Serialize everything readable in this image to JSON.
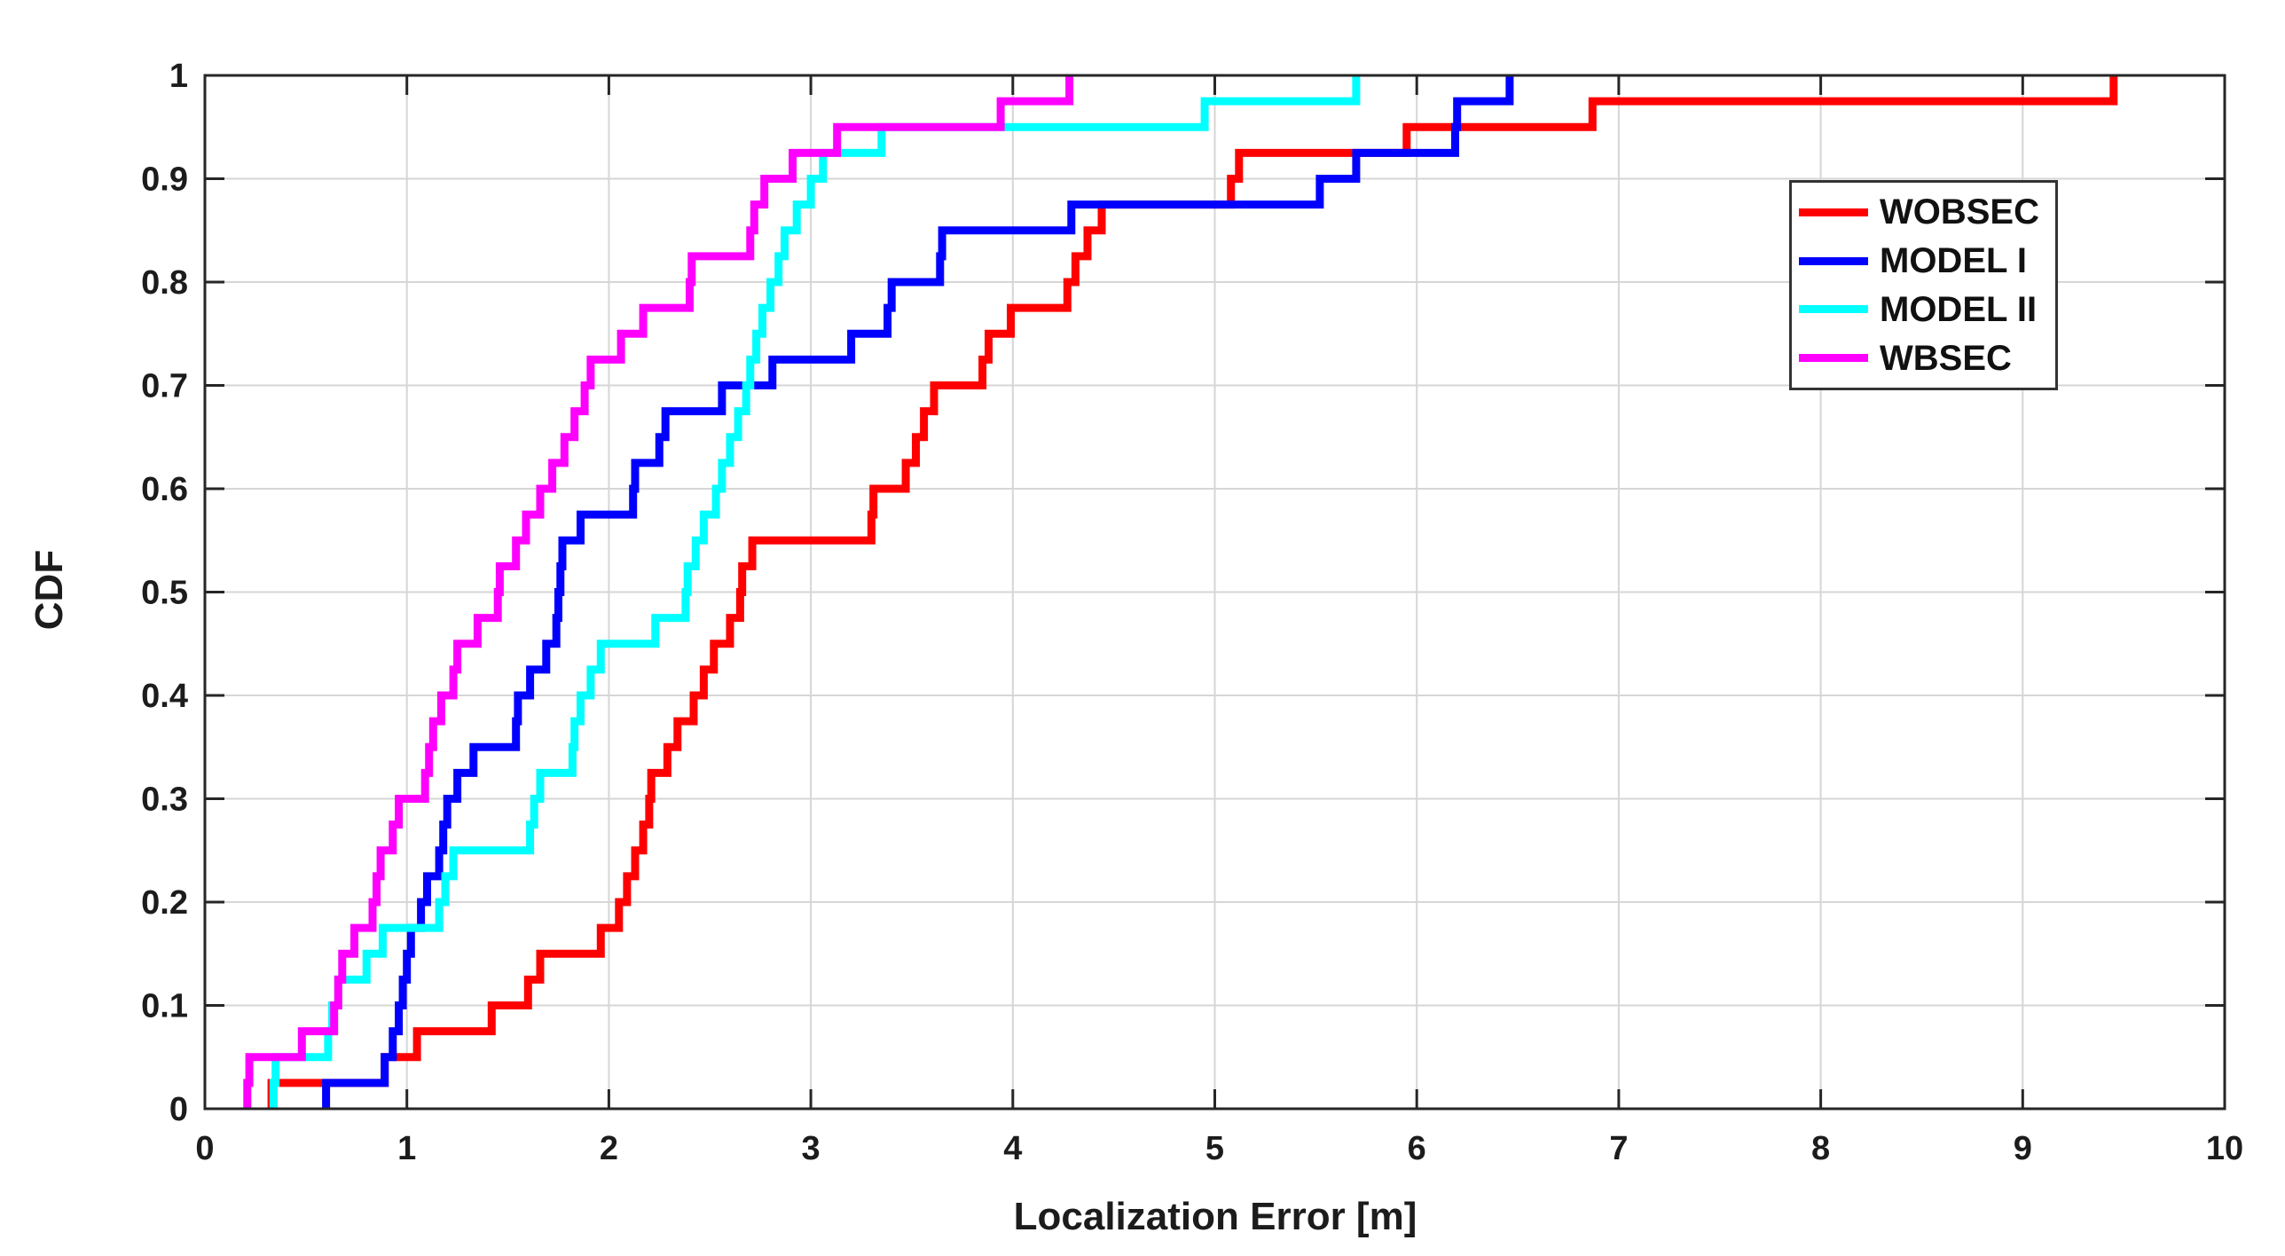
{
  "chart_data": {
    "type": "line",
    "subtype": "empirical-cdf-step",
    "title": "",
    "xlabel": "Localization Error [m]",
    "ylabel": "CDF",
    "xlim": [
      0,
      10
    ],
    "ylim": [
      0,
      1
    ],
    "xticks": [
      0,
      1,
      2,
      3,
      4,
      5,
      6,
      7,
      8,
      9,
      10
    ],
    "xtick_labels": [
      "0",
      "1",
      "2",
      "3",
      "4",
      "5",
      "6",
      "7",
      "8",
      "9",
      "10"
    ],
    "yticks": [
      0,
      0.1,
      0.2,
      0.3,
      0.4,
      0.5,
      0.6,
      0.7,
      0.8,
      0.9,
      1
    ],
    "ytick_labels": [
      "0",
      "0.1",
      "0.2",
      "0.3",
      "0.4",
      "0.5",
      "0.6",
      "0.7",
      "0.8",
      "0.9",
      "1"
    ],
    "grid": true,
    "legend_position": "top-right",
    "step_increment": 0.025,
    "series": [
      {
        "name": "WOBSEC",
        "color": "#ff0000",
        "samples": [
          0.33,
          0.89,
          1.05,
          1.42,
          1.6,
          1.66,
          1.96,
          2.05,
          2.09,
          2.13,
          2.17,
          2.2,
          2.21,
          2.29,
          2.34,
          2.42,
          2.47,
          2.52,
          2.6,
          2.65,
          2.66,
          2.71,
          3.3,
          3.31,
          3.47,
          3.52,
          3.56,
          3.61,
          3.85,
          3.88,
          3.99,
          4.27,
          4.31,
          4.37,
          4.44,
          5.08,
          5.12,
          5.95,
          6.87,
          9.45
        ]
      },
      {
        "name": "MODEL I",
        "color": "#0000ff",
        "samples": [
          0.6,
          0.89,
          0.93,
          0.96,
          0.98,
          1.0,
          1.02,
          1.07,
          1.1,
          1.16,
          1.18,
          1.2,
          1.25,
          1.33,
          1.54,
          1.55,
          1.61,
          1.69,
          1.74,
          1.75,
          1.76,
          1.77,
          1.86,
          2.12,
          2.13,
          2.25,
          2.28,
          2.56,
          2.81,
          3.2,
          3.38,
          3.4,
          3.64,
          3.65,
          4.29,
          5.52,
          5.7,
          6.19,
          6.2,
          6.46
        ]
      },
      {
        "name": "MODEL II",
        "color": "#00ffff",
        "samples": [
          0.34,
          0.35,
          0.61,
          0.63,
          0.66,
          0.8,
          0.88,
          1.16,
          1.19,
          1.23,
          1.61,
          1.63,
          1.66,
          1.82,
          1.83,
          1.86,
          1.91,
          1.96,
          2.23,
          2.38,
          2.39,
          2.43,
          2.47,
          2.53,
          2.56,
          2.6,
          2.64,
          2.68,
          2.7,
          2.73,
          2.76,
          2.8,
          2.84,
          2.87,
          2.93,
          3.0,
          3.06,
          3.35,
          4.95,
          5.7
        ]
      },
      {
        "name": "WBSEC",
        "color": "#ff00ff",
        "samples": [
          0.21,
          0.22,
          0.48,
          0.64,
          0.66,
          0.68,
          0.74,
          0.83,
          0.85,
          0.87,
          0.93,
          0.96,
          1.09,
          1.11,
          1.13,
          1.17,
          1.23,
          1.25,
          1.35,
          1.45,
          1.46,
          1.54,
          1.59,
          1.66,
          1.72,
          1.78,
          1.83,
          1.88,
          1.91,
          2.06,
          2.17,
          2.4,
          2.41,
          2.7,
          2.72,
          2.77,
          2.91,
          3.13,
          3.94,
          4.28
        ]
      }
    ]
  },
  "colors": {
    "background": "#ffffff",
    "grid": "#d6d6d6",
    "axis": "#262626",
    "tick_label": "#1c1c1c"
  }
}
